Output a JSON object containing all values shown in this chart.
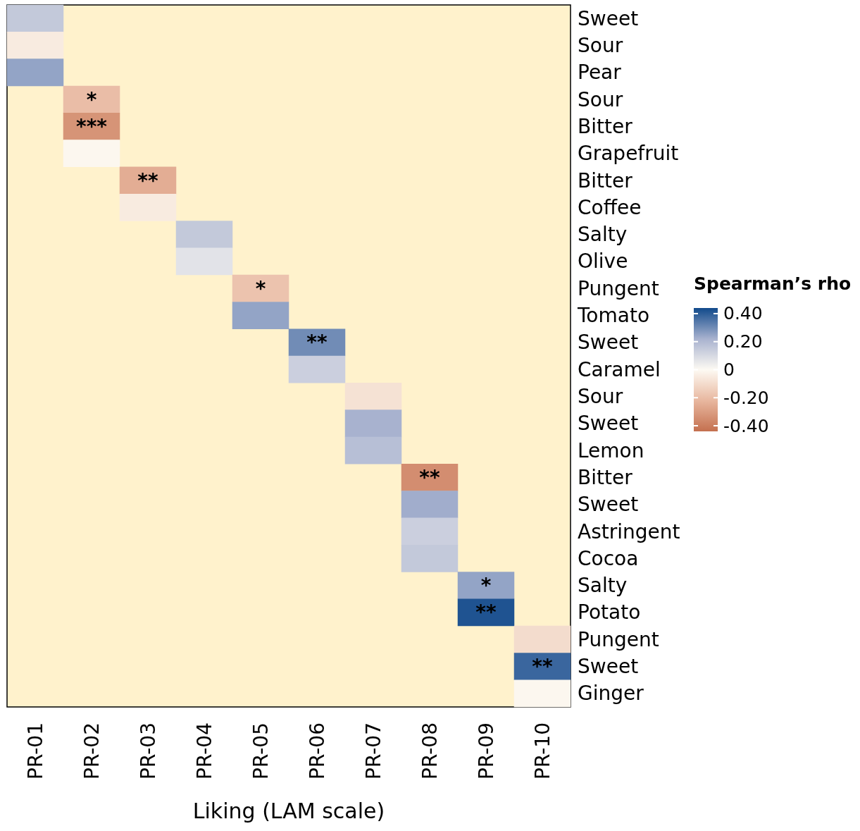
{
  "chart_data": {
    "type": "heatmap",
    "xlabel": "Liking (LAM scale)",
    "clabel": "Spearman’s rho",
    "categories": [
      "PR-01",
      "PR-02",
      "PR-03",
      "PR-04",
      "PR-05",
      "PR-06",
      "PR-07",
      "PR-08",
      "PR-09",
      "PR-10"
    ],
    "y_categories": [
      "Sweet",
      "Sour",
      "Pear",
      "Sour",
      "Bitter",
      "Grapefruit",
      "Bitter",
      "Coffee",
      "Salty",
      "Olive",
      "Pungent",
      "Tomato",
      "Sweet",
      "Caramel",
      "Sour",
      "Sweet",
      "Lemon",
      "Bitter",
      "Sweet",
      "Astringent",
      "Cocoa",
      "Salty",
      "Potato",
      "Pungent",
      "Sweet",
      "Ginger"
    ],
    "cells": [
      [
        0.15,
        null,
        null,
        null,
        null,
        null,
        null,
        null,
        null,
        null
      ],
      [
        -0.05,
        null,
        null,
        null,
        null,
        null,
        null,
        null,
        null,
        null
      ],
      [
        0.25,
        null,
        null,
        null,
        null,
        null,
        null,
        null,
        null,
        null
      ],
      [
        null,
        -0.2,
        null,
        null,
        null,
        null,
        null,
        null,
        null,
        null
      ],
      [
        null,
        -0.33,
        null,
        null,
        null,
        null,
        null,
        null,
        null,
        null
      ],
      [
        null,
        -0.01,
        null,
        null,
        null,
        null,
        null,
        null,
        null,
        null
      ],
      [
        null,
        null,
        -0.25,
        null,
        null,
        null,
        null,
        null,
        null,
        null
      ],
      [
        null,
        null,
        -0.05,
        null,
        null,
        null,
        null,
        null,
        null,
        null
      ],
      [
        null,
        null,
        null,
        0.15,
        null,
        null,
        null,
        null,
        null,
        null
      ],
      [
        null,
        null,
        null,
        0.07,
        null,
        null,
        null,
        null,
        null,
        null
      ],
      [
        null,
        null,
        null,
        null,
        -0.18,
        null,
        null,
        null,
        null,
        null
      ],
      [
        null,
        null,
        null,
        null,
        0.25,
        null,
        null,
        null,
        null,
        null
      ],
      [
        null,
        null,
        null,
        null,
        null,
        0.3,
        null,
        null,
        null,
        null
      ],
      [
        null,
        null,
        null,
        null,
        null,
        0.13,
        null,
        null,
        null,
        null
      ],
      [
        null,
        null,
        null,
        null,
        null,
        null,
        -0.08,
        null,
        null,
        null
      ],
      [
        null,
        null,
        null,
        null,
        null,
        null,
        0.22,
        null,
        null,
        null
      ],
      [
        null,
        null,
        null,
        null,
        null,
        null,
        0.18,
        null,
        null,
        null
      ],
      [
        null,
        null,
        null,
        null,
        null,
        null,
        null,
        -0.35,
        null,
        null
      ],
      [
        null,
        null,
        null,
        null,
        null,
        null,
        null,
        0.23,
        null,
        null
      ],
      [
        null,
        null,
        null,
        null,
        null,
        null,
        null,
        0.13,
        null,
        null
      ],
      [
        null,
        null,
        null,
        null,
        null,
        null,
        null,
        0.15,
        null,
        null
      ],
      [
        null,
        null,
        null,
        null,
        null,
        null,
        null,
        null,
        0.25,
        null
      ],
      [
        null,
        null,
        null,
        null,
        null,
        null,
        null,
        null,
        0.42,
        null
      ],
      [
        null,
        null,
        null,
        null,
        null,
        null,
        null,
        null,
        null,
        -0.1
      ],
      [
        null,
        null,
        null,
        null,
        null,
        null,
        null,
        null,
        null,
        0.38
      ],
      [
        null,
        null,
        null,
        null,
        null,
        null,
        null,
        null,
        null,
        -0.01
      ]
    ],
    "cell_labels": [
      [
        null,
        null,
        null,
        null,
        null,
        null,
        null,
        null,
        null,
        null
      ],
      [
        null,
        null,
        null,
        null,
        null,
        null,
        null,
        null,
        null,
        null
      ],
      [
        null,
        null,
        null,
        null,
        null,
        null,
        null,
        null,
        null,
        null
      ],
      [
        null,
        "*",
        null,
        null,
        null,
        null,
        null,
        null,
        null,
        null
      ],
      [
        null,
        "***",
        null,
        null,
        null,
        null,
        null,
        null,
        null,
        null
      ],
      [
        null,
        null,
        null,
        null,
        null,
        null,
        null,
        null,
        null,
        null
      ],
      [
        null,
        null,
        "**",
        null,
        null,
        null,
        null,
        null,
        null,
        null
      ],
      [
        null,
        null,
        null,
        null,
        null,
        null,
        null,
        null,
        null,
        null
      ],
      [
        null,
        null,
        null,
        null,
        null,
        null,
        null,
        null,
        null,
        null
      ],
      [
        null,
        null,
        null,
        null,
        null,
        null,
        null,
        null,
        null,
        null
      ],
      [
        null,
        null,
        null,
        null,
        "*",
        null,
        null,
        null,
        null,
        null
      ],
      [
        null,
        null,
        null,
        null,
        null,
        null,
        null,
        null,
        null,
        null
      ],
      [
        null,
        null,
        null,
        null,
        null,
        "**",
        null,
        null,
        null,
        null
      ],
      [
        null,
        null,
        null,
        null,
        null,
        null,
        null,
        null,
        null,
        null
      ],
      [
        null,
        null,
        null,
        null,
        null,
        null,
        null,
        null,
        null,
        null
      ],
      [
        null,
        null,
        null,
        null,
        null,
        null,
        null,
        null,
        null,
        null
      ],
      [
        null,
        null,
        null,
        null,
        null,
        null,
        null,
        null,
        null,
        null
      ],
      [
        null,
        null,
        null,
        null,
        null,
        null,
        null,
        "**",
        null,
        null
      ],
      [
        null,
        null,
        null,
        null,
        null,
        null,
        null,
        null,
        null,
        null
      ],
      [
        null,
        null,
        null,
        null,
        null,
        null,
        null,
        null,
        null,
        null
      ],
      [
        null,
        null,
        null,
        null,
        null,
        null,
        null,
        null,
        null,
        null
      ],
      [
        null,
        null,
        null,
        null,
        null,
        null,
        null,
        null,
        "*",
        null
      ],
      [
        null,
        null,
        null,
        null,
        null,
        null,
        null,
        null,
        "**",
        null
      ],
      [
        null,
        null,
        null,
        null,
        null,
        null,
        null,
        null,
        null,
        null
      ],
      [
        null,
        null,
        null,
        null,
        null,
        null,
        null,
        null,
        null,
        "**"
      ],
      [
        null,
        null,
        null,
        null,
        null,
        null,
        null,
        null,
        null,
        null
      ]
    ],
    "clim": [
      -0.44,
      0.44
    ],
    "cticks": [
      {
        "value": 0.4,
        "label": "0.40"
      },
      {
        "value": 0.2,
        "label": "0.20"
      },
      0,
      {
        "value": -0.2,
        "label": "-0.20"
      },
      {
        "value": -0.4,
        "label": "-0.40"
      }
    ]
  }
}
